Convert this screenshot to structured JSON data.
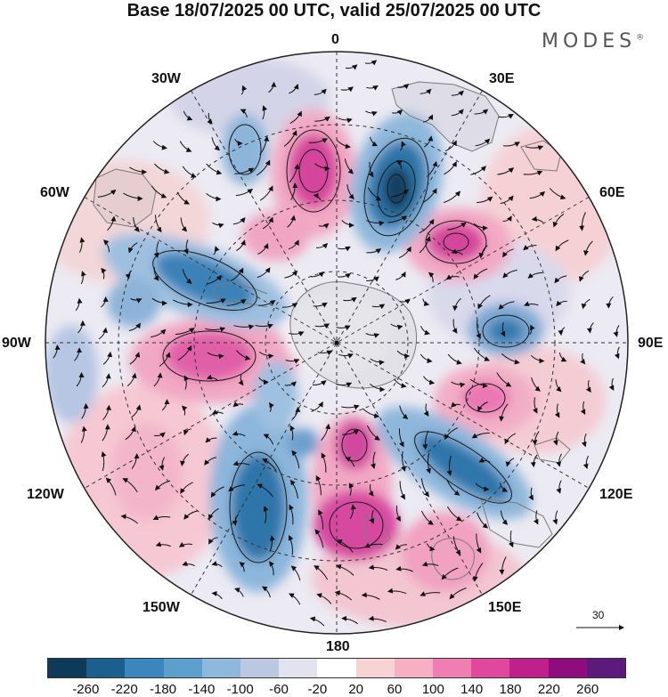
{
  "title": "Base 18/07/2025 00 UTC, valid 25/07/2025 00 UTC",
  "brand": "MODES",
  "brand_mark": "®",
  "longitude_labels": {
    "top": "0",
    "top_left": "30W",
    "top_right": "30E",
    "upper_left": "60W",
    "upper_right": "60E",
    "left": "90W",
    "right": "90E",
    "lower_left": "120W",
    "lower_right": "120E",
    "bottom_left": "150W",
    "bottom_right": "150E",
    "bottom": "180"
  },
  "reference_vector": {
    "label": "30",
    "icon": "arrow-right-icon"
  },
  "colorbar": {
    "colors": [
      "#0e3a5a",
      "#1b5f8f",
      "#3a86bd",
      "#5d9fcc",
      "#8eb8dc",
      "#bcc7e2",
      "#e3e3f0",
      "#ffffff",
      "#f8d3d6",
      "#f6afc3",
      "#ef7eb2",
      "#e0489e",
      "#c0208c",
      "#8e0c7e",
      "#5c1a7d"
    ],
    "ticks": [
      "-260",
      "-220",
      "-180",
      "-140",
      "-100",
      "-60",
      "-20",
      "20",
      "60",
      "100",
      "140",
      "180",
      "220",
      "260"
    ]
  },
  "map": {
    "projection": "polar stereographic (south pole centered)",
    "icons": [
      "wind-vector-icon",
      "contour-line-icon",
      "continent-outline-icon"
    ]
  }
}
